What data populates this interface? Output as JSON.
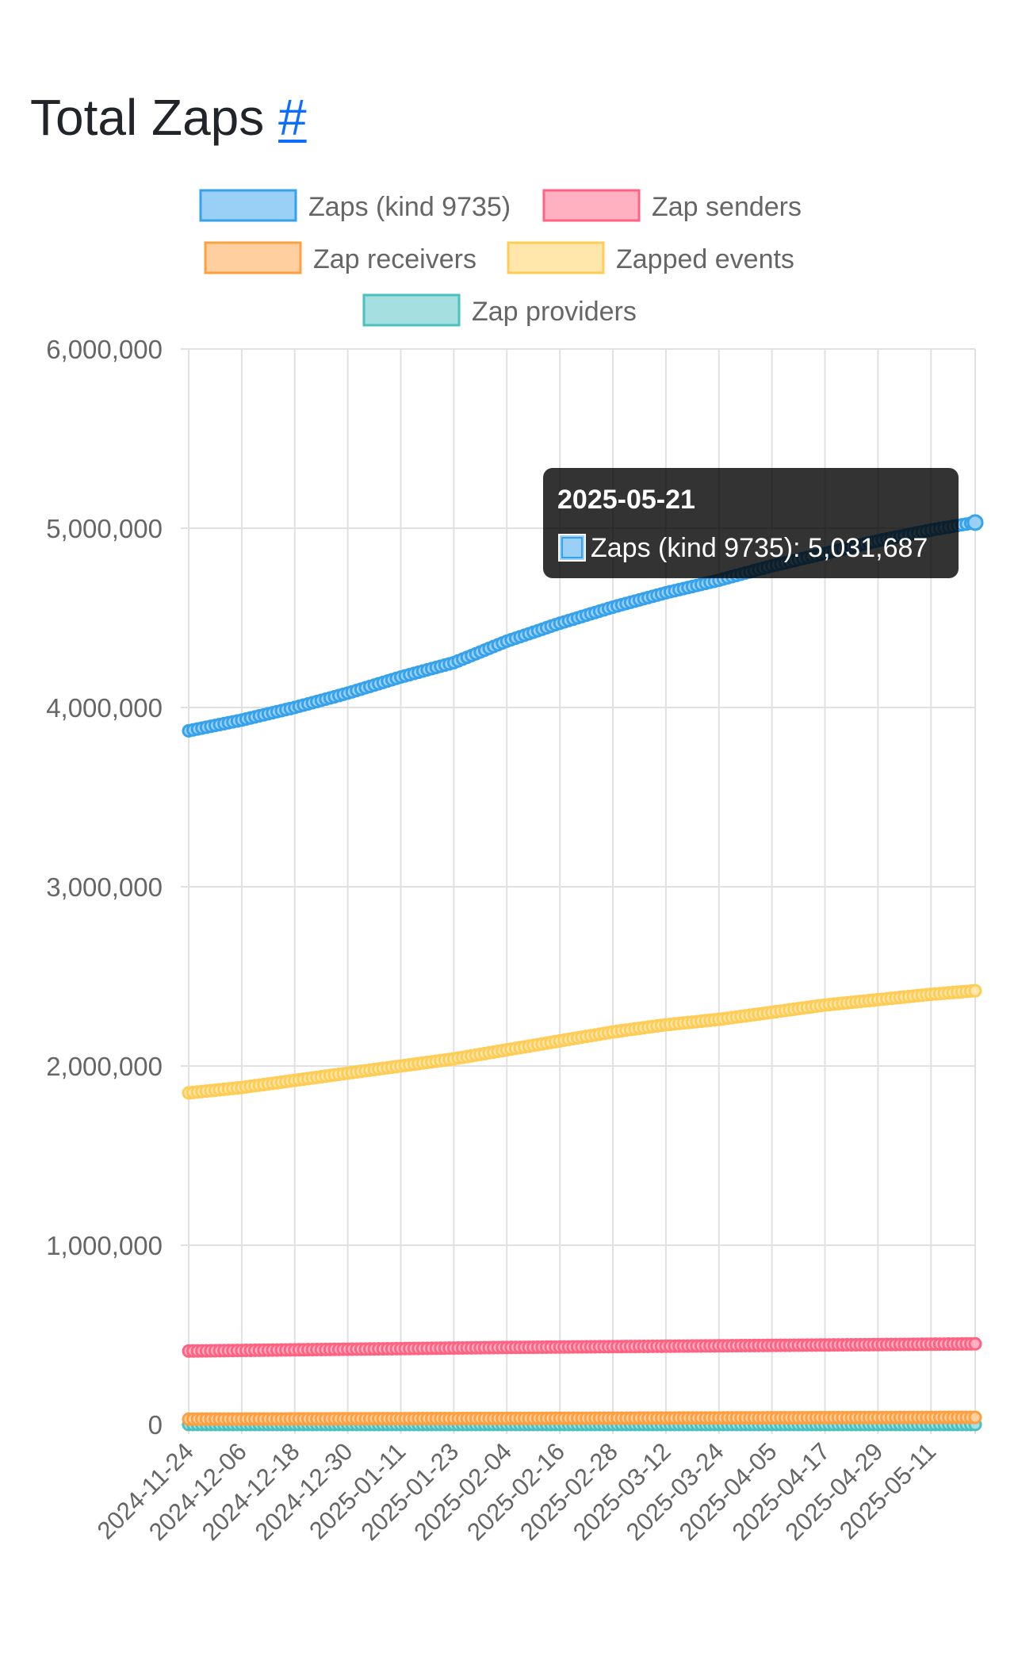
{
  "page": {
    "title": "Total Zaps",
    "anchor_label": "#"
  },
  "tooltip": {
    "title": "2025-05-21",
    "series_label": "Zaps (kind 9735)",
    "value": "5,031,687"
  },
  "chart_data": {
    "type": "line",
    "title": "",
    "xlabel": "",
    "ylabel": "",
    "ylim": [
      0,
      6000000
    ],
    "yticks": [
      0,
      1000000,
      2000000,
      3000000,
      4000000,
      5000000,
      6000000
    ],
    "ytick_labels": [
      "0",
      "1,000,000",
      "2,000,000",
      "3,000,000",
      "4,000,000",
      "5,000,000",
      "6,000,000"
    ],
    "x_start": "2024-11-24",
    "x_end": "2025-05-21",
    "x_tick_labels": [
      "2024-11-24",
      "2024-12-06",
      "2024-12-18",
      "2024-12-30",
      "2025-01-11",
      "2025-01-23",
      "2025-02-04",
      "2025-02-16",
      "2025-02-28",
      "2025-03-12",
      "2025-03-24",
      "2025-04-05",
      "2025-04-17",
      "2025-04-29",
      "2025-05-11"
    ],
    "grid": true,
    "legend_position": "top-center",
    "series": [
      {
        "name": "Zaps (kind 9735)",
        "color": "#36a2eb",
        "fill": "#9ad0f5",
        "points": [
          {
            "x": "2024-11-24",
            "y": 3870000
          },
          {
            "x": "2024-12-06",
            "y": 3930000
          },
          {
            "x": "2024-12-18",
            "y": 4000000
          },
          {
            "x": "2024-12-30",
            "y": 4080000
          },
          {
            "x": "2025-01-11",
            "y": 4170000
          },
          {
            "x": "2025-01-23",
            "y": 4250000
          },
          {
            "x": "2025-02-04",
            "y": 4370000
          },
          {
            "x": "2025-02-16",
            "y": 4470000
          },
          {
            "x": "2025-02-28",
            "y": 4560000
          },
          {
            "x": "2025-03-12",
            "y": 4640000
          },
          {
            "x": "2025-03-24",
            "y": 4710000
          },
          {
            "x": "2025-04-05",
            "y": 4790000
          },
          {
            "x": "2025-04-17",
            "y": 4860000
          },
          {
            "x": "2025-04-29",
            "y": 4930000
          },
          {
            "x": "2025-05-11",
            "y": 4990000
          },
          {
            "x": "2025-05-21",
            "y": 5031687
          }
        ]
      },
      {
        "name": "Zap senders",
        "color": "#ff6384",
        "fill": "#ffb1c1",
        "points": [
          {
            "x": "2024-11-24",
            "y": 410000
          },
          {
            "x": "2025-02-04",
            "y": 430000
          },
          {
            "x": "2025-05-21",
            "y": 450000
          }
        ]
      },
      {
        "name": "Zap receivers",
        "color": "#ff9f40",
        "fill": "#ffcf9f",
        "points": [
          {
            "x": "2024-11-24",
            "y": 30000
          },
          {
            "x": "2025-05-21",
            "y": 40000
          }
        ]
      },
      {
        "name": "Zapped events",
        "color": "#ffcd56",
        "fill": "#ffe6aa",
        "points": [
          {
            "x": "2024-11-24",
            "y": 1850000
          },
          {
            "x": "2024-12-06",
            "y": 1880000
          },
          {
            "x": "2024-12-18",
            "y": 1920000
          },
          {
            "x": "2024-12-30",
            "y": 1960000
          },
          {
            "x": "2025-01-11",
            "y": 2000000
          },
          {
            "x": "2025-01-23",
            "y": 2040000
          },
          {
            "x": "2025-02-04",
            "y": 2090000
          },
          {
            "x": "2025-02-16",
            "y": 2140000
          },
          {
            "x": "2025-02-28",
            "y": 2190000
          },
          {
            "x": "2025-03-12",
            "y": 2230000
          },
          {
            "x": "2025-03-24",
            "y": 2260000
          },
          {
            "x": "2025-04-05",
            "y": 2300000
          },
          {
            "x": "2025-04-17",
            "y": 2340000
          },
          {
            "x": "2025-04-29",
            "y": 2370000
          },
          {
            "x": "2025-05-11",
            "y": 2400000
          },
          {
            "x": "2025-05-21",
            "y": 2420000
          }
        ]
      },
      {
        "name": "Zap providers",
        "color": "#4bc0c0",
        "fill": "#a5dfdf",
        "points": [
          {
            "x": "2024-11-24",
            "y": 0
          },
          {
            "x": "2025-05-21",
            "y": 0
          }
        ]
      }
    ]
  }
}
